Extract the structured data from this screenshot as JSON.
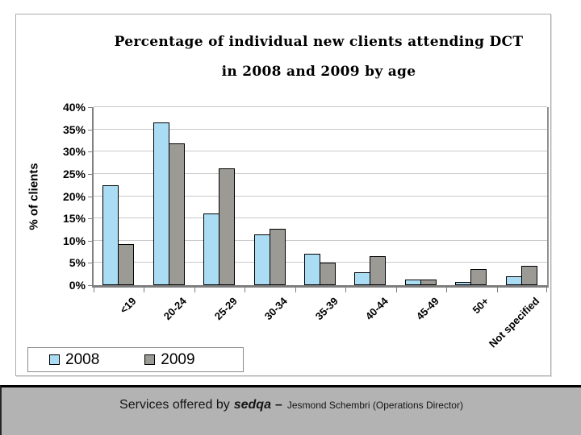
{
  "slide": {
    "title_line1": "Percentage of individual new clients attending DCT",
    "title_line2": "in 2008 and 2009 by age"
  },
  "chart_data": {
    "type": "bar",
    "title": "Percentage of individual new clients attending DCT in 2008 and 2009 by age",
    "categories": [
      "<19",
      "20-24",
      "25-29",
      "30-34",
      "35-39",
      "40-44",
      "45-49",
      "50+",
      "Not specified"
    ],
    "series": [
      {
        "name": "2008",
        "color": "#AADDF4",
        "values": [
          22.4,
          36.6,
          16.2,
          11.4,
          7.0,
          2.9,
          1.3,
          0.8,
          2.0
        ]
      },
      {
        "name": "2009",
        "color": "#9C9A94",
        "values": [
          9.3,
          31.9,
          26.3,
          12.6,
          5.0,
          6.6,
          1.3,
          3.7,
          4.3
        ]
      }
    ],
    "xlabel": "",
    "ylabel": "% of clients",
    "ylim": [
      0,
      40
    ],
    "ytick_step": 5,
    "ytick_suffix": "%",
    "grid": true,
    "legend_position": "bottom-left",
    "bar_border_color": "#000000",
    "axis_color": "#808080",
    "gridline_color": "#C9C9C9"
  },
  "footer": {
    "prefix": "Services offered by",
    "brand": "sedqa",
    "dash": "–",
    "credit": "Jesmond Schembri (Operations Director)",
    "background": "#B3B3B3"
  }
}
